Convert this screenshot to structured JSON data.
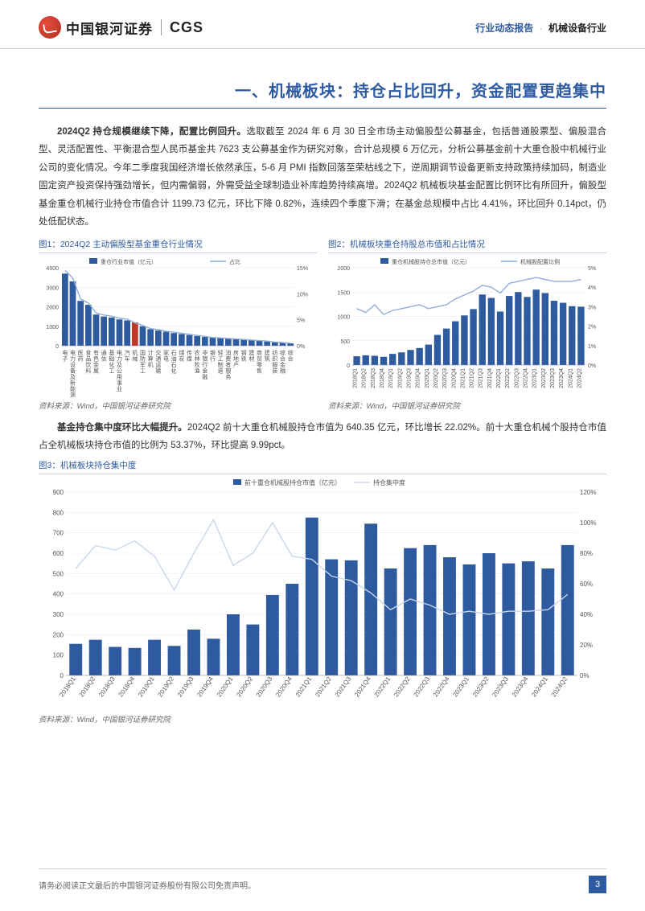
{
  "header": {
    "logo_cn": "中国银河证券",
    "logo_en": "CGS",
    "right_blue": "行业动态报告",
    "right_dot": "·",
    "right_black": "机械设备行业"
  },
  "section_title": "一、机械板块：持仓占比回升，资金配置更趋集中",
  "para1_bold": "2024Q2 持仓规模继续下降，配置比例回升。",
  "para1": "选取截至 2024 年 6 月 30 日全市场主动偏股型公募基金，包括普通股票型、偏股混合型、灵活配置性、平衡混合型人民币基金共 7623 支公募基金作为研究对象，合计总规模 6 万亿元，分析公募基金前十大重仓股中机械行业公司的变化情况。今年二季度我国经济增长依然承压，5-6 月 PMI 指数回落至荣枯线之下，逆周期调节设备更新支持政策持续加码，制造业固定资产投资保持强劲增长，但内需偏弱，外需受益全球制造业补库趋势持续高增。2024Q2 机械板块基金配置比例环比有所回升，偏股型基金重仓机械行业持仓市值合计 1199.73 亿元，环比下降 0.82%，连续四个季度下滑；在基金总规模中占比 4.41%，环比回升 0.14pct，仍处低配状态。",
  "fig1": {
    "title": "图1：2024Q2 主动偏股型基金重仓行业情况",
    "legend_bar": "重仓行业市值（亿元）",
    "legend_line": "占比",
    "source": "资料来源：Wind，中国银河证券研究院",
    "categories": [
      "电子",
      "电力设备及新能源",
      "医药",
      "食品饮料",
      "有色金属",
      "通信",
      "基础化工",
      "电力及公用事业",
      "汽车",
      "机械",
      "国防军工",
      "计算机",
      "交通运输",
      "家电",
      "石油石化",
      "煤炭",
      "传媒",
      "农林牧渔",
      "非银行金融",
      "银行",
      "轻工制造",
      "消费者服务",
      "房地产",
      "钢铁",
      "建材",
      "商贸零售",
      "建筑",
      "纺织服装",
      "综合金融",
      "综合"
    ],
    "bar_values": [
      3700,
      3300,
      2300,
      2100,
      1600,
      1500,
      1450,
      1350,
      1300,
      1200,
      1000,
      850,
      780,
      720,
      650,
      600,
      550,
      500,
      450,
      420,
      400,
      380,
      350,
      320,
      280,
      250,
      220,
      180,
      150,
      120
    ],
    "line_values": [
      14.5,
      13,
      9,
      8.2,
      6.3,
      5.9,
      5.7,
      5.3,
      5.1,
      4.4,
      3.9,
      3.3,
      3.1,
      2.8,
      2.6,
      2.4,
      2.2,
      2.0,
      1.8,
      1.6,
      1.5,
      1.4,
      1.3,
      1.2,
      1.1,
      1.0,
      0.9,
      0.7,
      0.6,
      0.5
    ],
    "highlight_index": 9,
    "bar_color": "#2e5aa0",
    "highlight_color": "#c0392b",
    "line_color": "#8faed8",
    "y1_max": 4000,
    "y1_ticks": [
      0,
      1000,
      2000,
      3000,
      4000
    ],
    "y2_max": 15,
    "y2_ticks": [
      0,
      5,
      10,
      15
    ],
    "bg": "#ffffff",
    "grid": "#e8e8e8",
    "text_color": "#555",
    "fontsize": 7
  },
  "fig2": {
    "title": "图2：机械板块重仓持股总市值和占比情况",
    "legend_bar": "重仓机械股持仓总市值（亿元）",
    "legend_line": "机械股配置比例",
    "source": "资料来源：Wind，中国银河证券研究院",
    "categories": [
      "2018Q1",
      "2018Q2",
      "2018Q3",
      "2018Q4",
      "2019Q1",
      "2019Q2",
      "2019Q3",
      "2019Q4",
      "2020Q1",
      "2020Q2",
      "2020Q3",
      "2020Q4",
      "2021Q1",
      "2021Q2",
      "2021Q3",
      "2021Q4",
      "2022Q1",
      "2022Q2",
      "2022Q3",
      "2022Q4",
      "2023Q1",
      "2023Q2",
      "2023Q3",
      "2023Q4",
      "2024Q1",
      "2024Q2"
    ],
    "bar_values": [
      180,
      200,
      190,
      170,
      230,
      260,
      310,
      350,
      420,
      620,
      750,
      900,
      1020,
      1150,
      1450,
      1380,
      1100,
      1420,
      1500,
      1400,
      1550,
      1480,
      1320,
      1280,
      1210,
      1200
    ],
    "line_values": [
      2.9,
      2.7,
      3.1,
      2.6,
      2.8,
      2.9,
      3.0,
      3.1,
      2.9,
      3.0,
      3.1,
      3.4,
      3.6,
      3.8,
      4.1,
      4.0,
      3.7,
      4.2,
      4.3,
      4.4,
      4.5,
      4.4,
      4.3,
      4.3,
      4.3,
      4.4
    ],
    "bar_color": "#2e5aa0",
    "line_color": "#8faed8",
    "y1_max": 2000,
    "y1_ticks": [
      0,
      500,
      1000,
      1500,
      2000
    ],
    "y2_max": 5,
    "y2_ticks": [
      0,
      1,
      2,
      3,
      4,
      5
    ],
    "bg": "#ffffff",
    "grid": "#e8e8e8",
    "text_color": "#555",
    "fontsize": 7
  },
  "para2_bold": "基金持仓集中度环比大幅提升。",
  "para2": "2024Q2 前十大重仓机械股持仓市值为 640.35 亿元，环比增长 22.02%。前十大重仓机械个股持仓市值占全机械板块持仓市值的比例为 53.37%，环比提高 9.99pct。",
  "fig3": {
    "title": "图3：机械板块持仓集中度",
    "legend_bar": "前十重仓机械股持仓市值（亿元）",
    "legend_line": "持仓集中度",
    "source": "资料来源：Wind，中国银河证券研究院",
    "categories": [
      "2018Q1",
      "2018Q2",
      "2018Q3",
      "2018Q4",
      "2019Q1",
      "2019Q2",
      "2019Q3",
      "2019Q4",
      "2020Q1",
      "2020Q2",
      "2020Q3",
      "2020Q4",
      "2021Q1",
      "2021Q2",
      "2021Q3",
      "2021Q4",
      "2022Q1",
      "2022Q2",
      "2022Q3",
      "2022Q4",
      "2023Q1",
      "2023Q2",
      "2023Q3",
      "2023Q4",
      "2024Q1",
      "2024Q2"
    ],
    "bar_values": [
      155,
      175,
      140,
      135,
      175,
      145,
      225,
      180,
      300,
      250,
      395,
      450,
      775,
      570,
      565,
      745,
      525,
      625,
      640,
      580,
      545,
      600,
      550,
      560,
      525,
      640
    ],
    "line_values": [
      70,
      85,
      82,
      88,
      78,
      56,
      80,
      102,
      72,
      80,
      100,
      78,
      76,
      65,
      62,
      54,
      43,
      50,
      46,
      40,
      42,
      40,
      42,
      42,
      43,
      53
    ],
    "bar_color": "#2e5aa0",
    "line_color": "#c9d7ec",
    "y1_max": 900,
    "y1_ticks": [
      0,
      100,
      200,
      300,
      400,
      500,
      600,
      700,
      800,
      900
    ],
    "y2_max": 120,
    "y2_ticks": [
      0,
      20,
      40,
      60,
      80,
      100,
      120
    ],
    "bg": "#ffffff",
    "grid": "#e8e8e8",
    "text_color": "#555",
    "fontsize": 8
  },
  "footer": {
    "disclaimer": "请务必阅读正文最后的中国银河证券股份有限公司免责声明。",
    "page": "3"
  }
}
